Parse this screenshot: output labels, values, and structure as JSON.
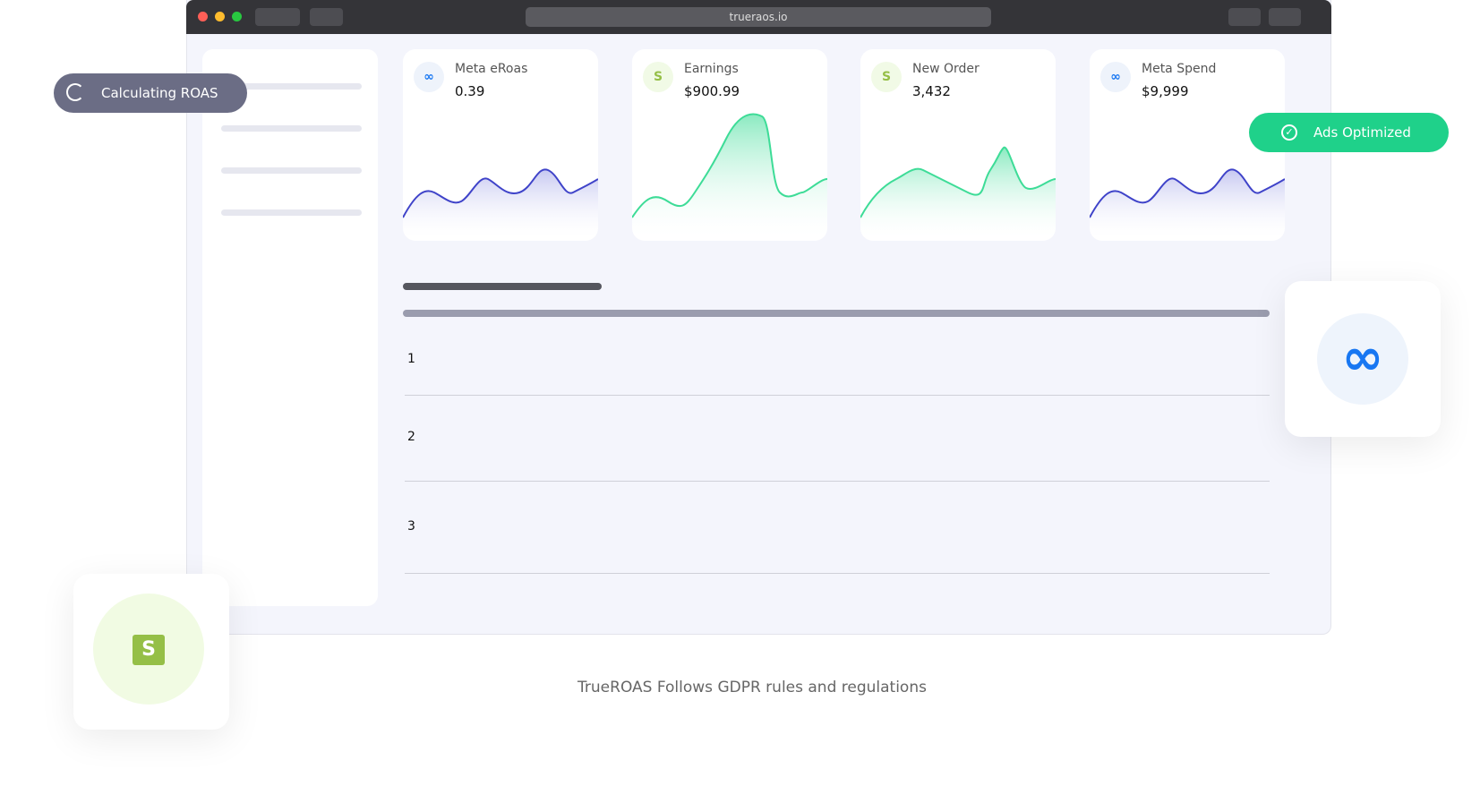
{
  "browser": {
    "url": "trueraos.io"
  },
  "badges": {
    "calculating": "Calculating ROAS",
    "optimized": "Ads Optimized"
  },
  "cards": [
    {
      "label": "Meta eRoas",
      "value": "0.39"
    },
    {
      "label": "Earnings",
      "value": "$900.99"
    },
    {
      "label": "New Order",
      "value": "3,432"
    },
    {
      "label": "Meta Spend",
      "value": "$9,999"
    }
  ],
  "table": {
    "rows": [
      "1",
      "2",
      "3"
    ]
  },
  "footer": "TrueROAS Follows GDPR rules and regulations"
}
